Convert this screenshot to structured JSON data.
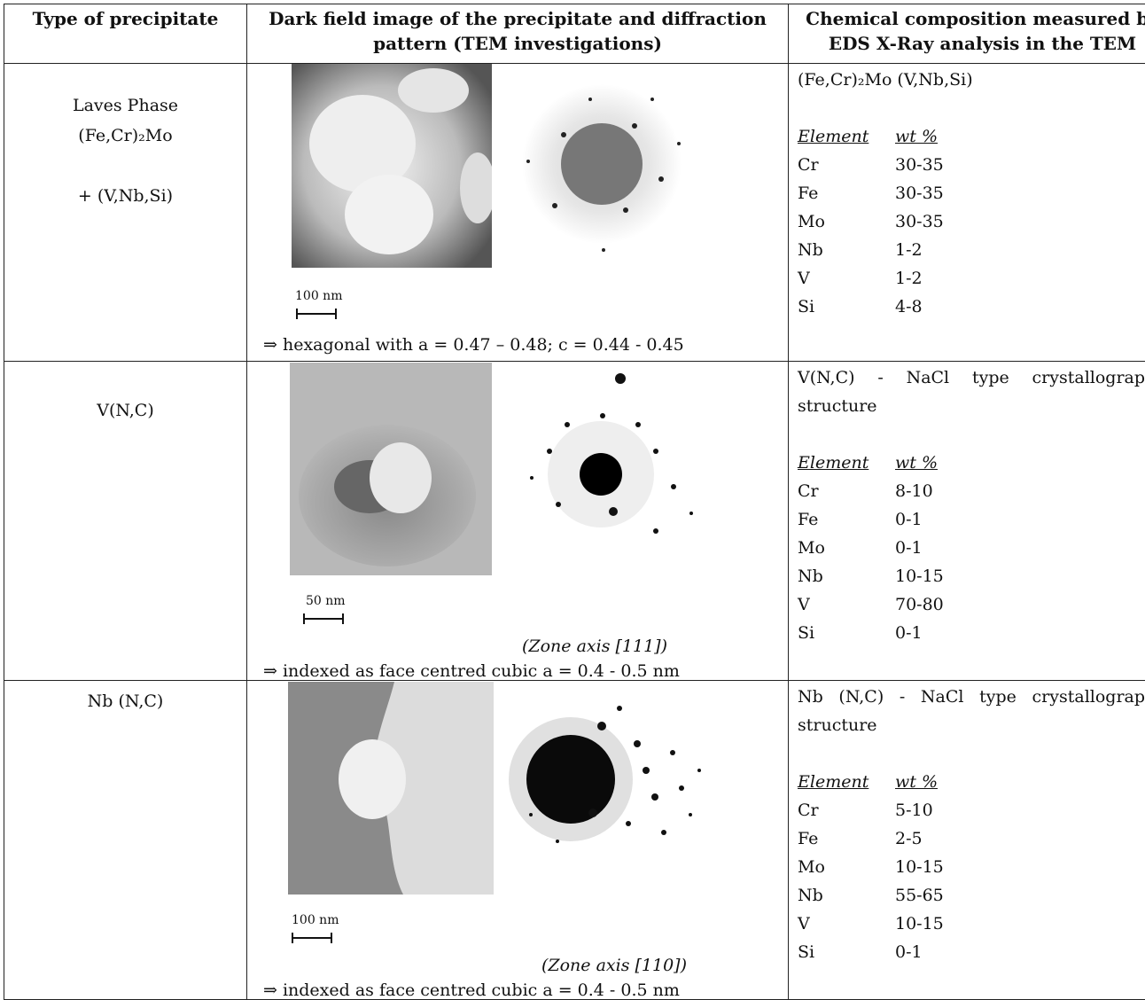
{
  "headers": {
    "type": "Type of precipitate",
    "image": "Dark field image of the precipitate and diffraction pattern (TEM investigations)",
    "composition": "Chemical composition measured by EDS X-Ray analysis in the TEM"
  },
  "rows": [
    {
      "type_lines": [
        "Laves Phase",
        "(Fe,Cr)₂Mo",
        "",
        "+ (V,Nb,Si)"
      ],
      "scale": "100 nm",
      "zone": "",
      "note": "⇒ hexagonal with a = 0.47 – 0.48; c = 0.44 - 0.45",
      "description": "(Fe,Cr)₂Mo (V,Nb,Si)",
      "element_label": "Element",
      "wt_label": "wt %",
      "elements": [
        {
          "el": "Cr",
          "wt": "30-35"
        },
        {
          "el": "Fe",
          "wt": "30-35"
        },
        {
          "el": "Mo",
          "wt": "30-35"
        },
        {
          "el": "Nb",
          "wt": "1-2"
        },
        {
          "el": "V",
          "wt": "1-2"
        },
        {
          "el": "Si",
          "wt": "4-8"
        }
      ]
    },
    {
      "type_lines": [
        "V(N,C)"
      ],
      "scale": "50 nm",
      "zone": "(Zone axis [111])",
      "note": "⇒ indexed as face centred cubic a = 0.4 - 0.5 nm",
      "description": "V(N,C) - NaCl type crystallographic structure",
      "element_label": "Element",
      "wt_label": "wt %",
      "elements": [
        {
          "el": "Cr",
          "wt": "8-10"
        },
        {
          "el": "Fe",
          "wt": "0-1"
        },
        {
          "el": "Mo",
          "wt": "0-1"
        },
        {
          "el": "Nb",
          "wt": "10-15"
        },
        {
          "el": "V",
          "wt": "70-80"
        },
        {
          "el": "Si",
          "wt": "0-1"
        }
      ]
    },
    {
      "type_lines": [
        "Nb (N,C)"
      ],
      "scale": "100 nm",
      "zone": "(Zone axis [110])",
      "note": "⇒ indexed as face centred cubic a = 0.4 - 0.5 nm",
      "description": "Nb (N,C) - NaCl type crystallographic structure",
      "element_label": "Element",
      "wt_label": "wt %",
      "elements": [
        {
          "el": "Cr",
          "wt": "5-10"
        },
        {
          "el": "Fe",
          "wt": "2-5"
        },
        {
          "el": "Mo",
          "wt": "10-15"
        },
        {
          "el": "Nb",
          "wt": "55-65"
        },
        {
          "el": "V",
          "wt": "10-15"
        },
        {
          "el": "Si",
          "wt": "0-1"
        }
      ]
    }
  ]
}
